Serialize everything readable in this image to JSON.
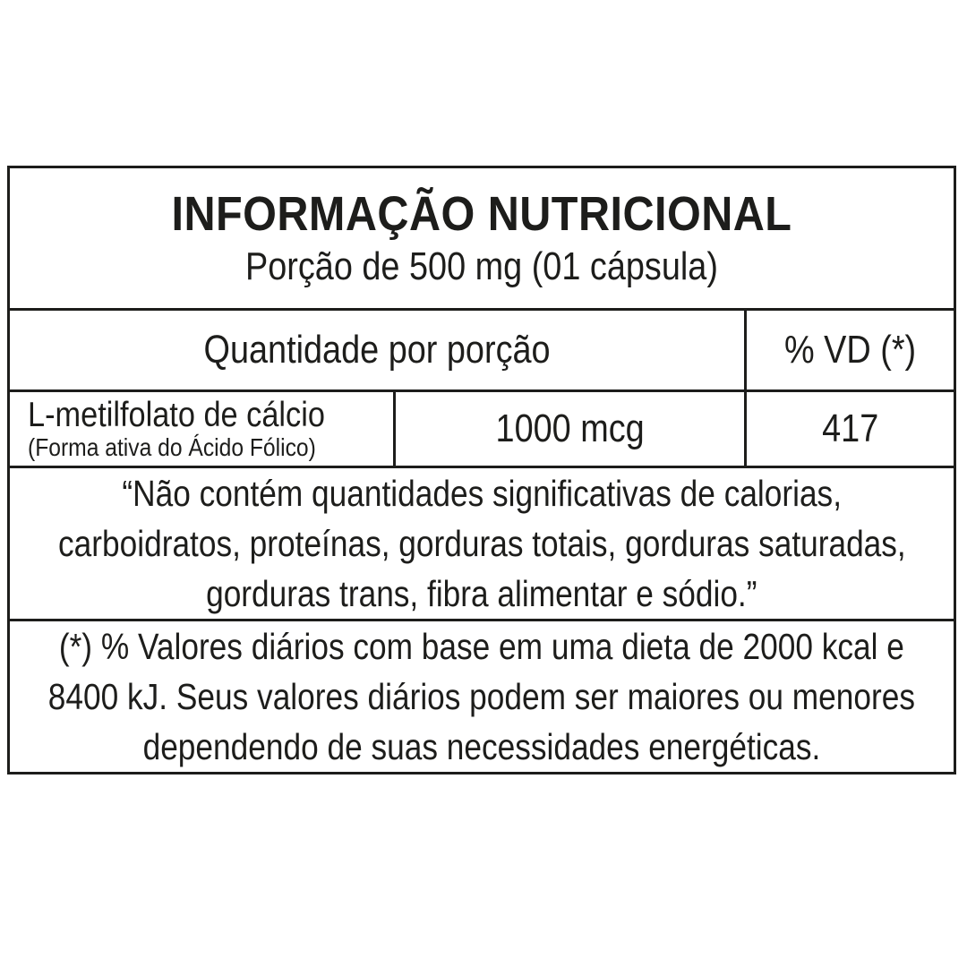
{
  "label": {
    "title": "INFORMAÇÃO NUTRICIONAL",
    "serving": "Porção de 500 mg (01 cápsula)",
    "header": {
      "quantity": "Quantidade por porção",
      "dv": "% VD (*)"
    },
    "nutrient": {
      "name": "L-metilfolato de cálcio",
      "form": "(Forma ativa do Ácido Fólico)",
      "amount": "1000 mcg",
      "dv": "417"
    },
    "note_lines": [
      "“Não contém quantidades significativas de calorias,",
      "carboidratos, proteínas, gorduras totais, gorduras saturadas,",
      "gorduras trans, fibra alimentar e sódio.”"
    ],
    "footnote_lines": [
      "(*) % Valores diários com base em uma dieta de 2000 kcal e",
      "8400 kJ. Seus valores diários podem ser maiores ou menores",
      "dependendo de suas necessidades energéticas."
    ],
    "colors": {
      "ink": "#1d1d1b",
      "background": "#ffffff"
    }
  }
}
